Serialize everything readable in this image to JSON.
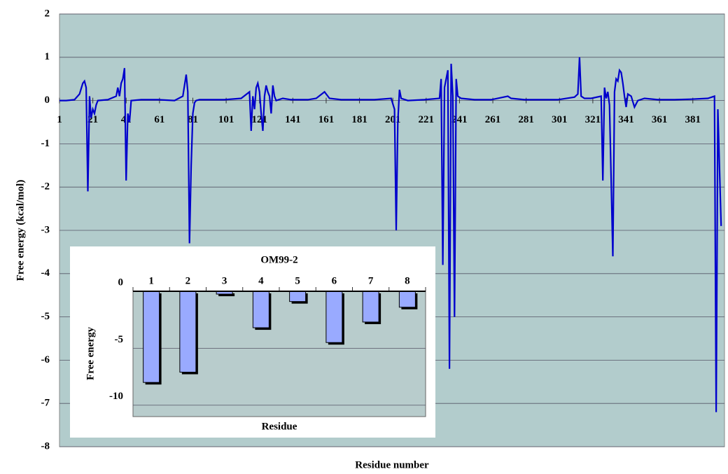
{
  "chart_data": [
    {
      "type": "line",
      "y_label": "Free energy (kcal/mol)",
      "x_label": "Residue number",
      "xlim": [
        1,
        400
      ],
      "xticks": [
        1,
        21,
        41,
        61,
        81,
        101,
        121,
        141,
        161,
        181,
        201,
        221,
        241,
        261,
        281,
        301,
        321,
        341,
        361,
        381
      ],
      "ylim": [
        -8,
        2
      ],
      "yticks": [
        -8,
        -7,
        -6,
        -5,
        -4,
        -3,
        -2,
        -1,
        0,
        1,
        2
      ],
      "grid": true,
      "series": [
        {
          "color": "#0000cc",
          "x": [
            1,
            5,
            10,
            13,
            15,
            16,
            17,
            18,
            19,
            20,
            21,
            22,
            23,
            24,
            30,
            35,
            36,
            37,
            38,
            39,
            40,
            41,
            42,
            43,
            44,
            50,
            60,
            70,
            75,
            77,
            78,
            79,
            80,
            81,
            82,
            83,
            85,
            100,
            110,
            115,
            116,
            117,
            118,
            119,
            120,
            121,
            122,
            123,
            124,
            125,
            126,
            127,
            128,
            129,
            130,
            131,
            135,
            140,
            150,
            155,
            160,
            163,
            170,
            180,
            190,
            200,
            202,
            203,
            204,
            205,
            206,
            210,
            220,
            229,
            230,
            231,
            232,
            234,
            235,
            236,
            237,
            238,
            239,
            240,
            242,
            250,
            260,
            270,
            272,
            280,
            300,
            310,
            312,
            313,
            314,
            316,
            320,
            326,
            327,
            328,
            329,
            330,
            331,
            333,
            334,
            335,
            336,
            337,
            338,
            339,
            340,
            341,
            342,
            344,
            346,
            348,
            352,
            360,
            370,
            380,
            390,
            394,
            395,
            396,
            398
          ],
          "values": [
            0,
            0,
            0.02,
            0.15,
            0.4,
            0.45,
            0.3,
            -2.1,
            0.1,
            -0.4,
            -0.2,
            -0.3,
            -0.1,
            0,
            0.02,
            0.1,
            0.3,
            0.1,
            0.4,
            0.5,
            0.75,
            -1.85,
            -0.3,
            -0.5,
            0,
            0.02,
            0.02,
            0,
            0.1,
            0.6,
            0.2,
            -3.3,
            -1.5,
            -0.3,
            -0.05,
            0,
            0.02,
            0.02,
            0.05,
            0.2,
            -0.7,
            0.1,
            -0.2,
            0.3,
            0.4,
            0.2,
            -0.3,
            -0.7,
            0.1,
            0.35,
            0.2,
            0.1,
            -0.3,
            0.35,
            0.1,
            0,
            0.05,
            0.02,
            0.02,
            0.05,
            0.2,
            0.05,
            0.02,
            0.02,
            0.02,
            0.05,
            -0.2,
            -3.0,
            -0.5,
            0.25,
            0.05,
            0,
            0.02,
            0.05,
            0.5,
            -3.8,
            0.3,
            0.7,
            -6.2,
            0.85,
            0.1,
            -5.0,
            0.5,
            0.1,
            0.05,
            0.02,
            0.02,
            0.1,
            0.05,
            0.02,
            0.02,
            0.08,
            0.15,
            1.0,
            0.1,
            0.05,
            0.05,
            0.1,
            -1.85,
            0.3,
            0.05,
            0.2,
            -0.1,
            -3.6,
            0.2,
            0.5,
            0.45,
            0.7,
            0.65,
            0.4,
            0.1,
            -0.15,
            0.15,
            0.1,
            -0.15,
            0,
            0.05,
            0.02,
            0.02,
            0.03,
            0.05,
            0.1,
            -7.2,
            -0.2,
            -2.9
          ]
        }
      ]
    },
    {
      "type": "bar",
      "title": "OM99-2",
      "y_label": "Free energy",
      "x_label": "Residue",
      "categories": [
        "1",
        "2",
        "3",
        "4",
        "5",
        "6",
        "7",
        "8"
      ],
      "values": [
        -8.0,
        -7.1,
        -0.25,
        -3.2,
        -0.9,
        -4.5,
        -2.7,
        -1.4
      ],
      "color": "#99aaff",
      "ylim": [
        -11,
        0
      ],
      "yticks": [
        -10,
        -5,
        0
      ],
      "grid": true
    }
  ]
}
